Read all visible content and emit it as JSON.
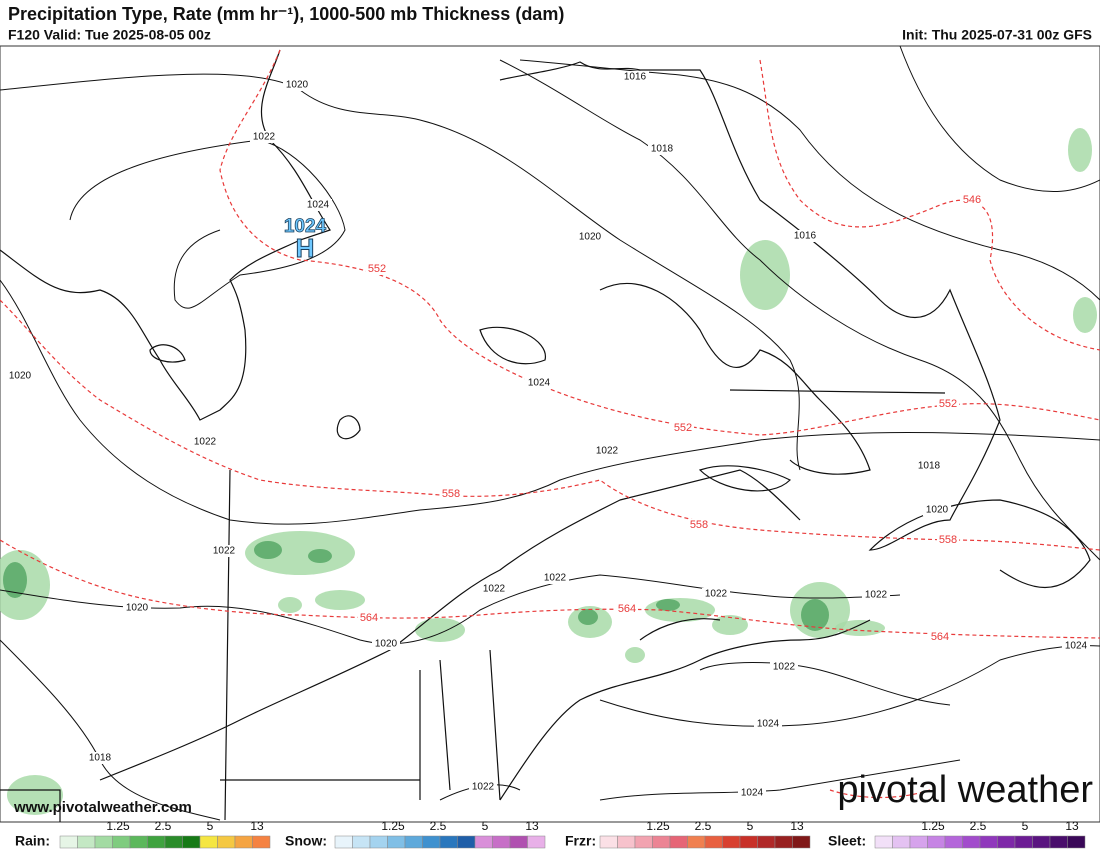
{
  "header": {
    "title": "Precipitation Type, Rate (mm hr⁻¹), 1000-500 mb Thickness (dam)",
    "valid": "F120 Valid: Tue 2025-08-05 00z",
    "init": "Init: Thu 2025-07-31 00z GFS"
  },
  "high": {
    "letter": "H",
    "pressure": 1024
  },
  "isobar_labels": [
    1020,
    1022,
    1024,
    1016,
    1018,
    1020,
    1016,
    1024,
    1020,
    1022,
    1022,
    1018,
    1020,
    1022,
    1022,
    1022,
    1020,
    1020,
    1022,
    1022,
    1024,
    1022,
    1024,
    1018,
    1022,
    1024
  ],
  "thickness_labels": [
    546,
    552,
    552,
    552,
    558,
    558,
    558,
    564,
    564,
    564
  ],
  "footer": {
    "url": "www.pivotalweather.com",
    "logo": "pivotal weather"
  },
  "legend": [
    {
      "label": "Rain:",
      "ticks": [
        1.25,
        2.5,
        5,
        13
      ],
      "colors": [
        "#e6f5e6",
        "#c4e8c4",
        "#a3dba3",
        "#7fcc7f",
        "#5cb85c",
        "#3fa33f",
        "#2a8c2a",
        "#167a16",
        "#f5e642",
        "#f5c842",
        "#f5a442",
        "#f58242"
      ]
    },
    {
      "label": "Snow:",
      "ticks": [
        1.25,
        2.5,
        5,
        13
      ],
      "colors": [
        "#e8f4fb",
        "#c6e4f5",
        "#a4d3ef",
        "#80bfe6",
        "#5ea9db",
        "#3f91cf",
        "#2a77bd",
        "#1f5ea8",
        "#d98fd9",
        "#c76fc7",
        "#b050b0",
        "#e8b0e8"
      ]
    },
    {
      "label": "Frzr:",
      "ticks": [
        1.25,
        2.5,
        5,
        13
      ],
      "colors": [
        "#fbe0e6",
        "#f7c2cc",
        "#f2a3b0",
        "#ec8494",
        "#e66576",
        "#f08050",
        "#e86040",
        "#d84030",
        "#c83028",
        "#b02828",
        "#982020",
        "#801818"
      ]
    },
    {
      "label": "Sleet:",
      "ticks": [
        1.25,
        2.5,
        5,
        13
      ],
      "colors": [
        "#f2e0f8",
        "#e4c2f2",
        "#d6a3ec",
        "#c684e4",
        "#b466da",
        "#a24ccc",
        "#9038bc",
        "#7e28a8",
        "#6c1c94",
        "#5a1480",
        "#4a0e6c",
        "#3a0858"
      ]
    }
  ]
}
